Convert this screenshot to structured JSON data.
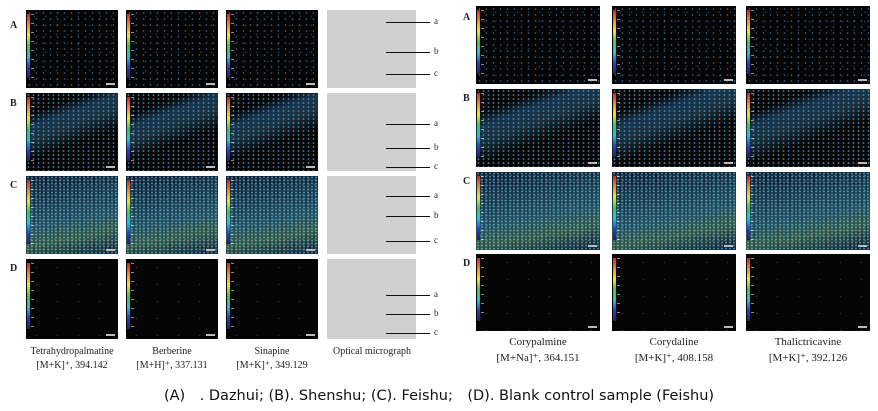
{
  "left_panel": {
    "row_labels": [
      "A",
      "B",
      "C",
      "D"
    ],
    "compounds": [
      {
        "name": "Tetrahydropalmatine",
        "ion": "[M+K]⁺, 394.142"
      },
      {
        "name": "Berberine",
        "ion": "[M+H]⁺, 337.131"
      },
      {
        "name": "Sinapine",
        "ion": "[M+K]⁺, 349.129"
      },
      {
        "name": "Optical micrograph",
        "ion": ""
      }
    ],
    "layer_labels": [
      "a",
      "b",
      "c"
    ]
  },
  "right_panel": {
    "row_labels": [
      "A",
      "B",
      "C",
      "D"
    ],
    "compounds": [
      {
        "name": "Corypalmine",
        "ion": "[M+Na]⁺, 364.151"
      },
      {
        "name": "Corydaline",
        "ion": "[M+K]⁺, 408.158"
      },
      {
        "name": "Thalictricavine",
        "ion": "[M+K]⁺, 392.126"
      }
    ]
  },
  "caption": "(A)　. Dazhui; (B). Shenshu; (C). Feishu;　(D). Blank control sample (Feishu)",
  "colors": {
    "colorbar_top": "#d62020",
    "colorbar_bottom": "#2a1b6b",
    "micrograph_D": "#5b3f85"
  }
}
